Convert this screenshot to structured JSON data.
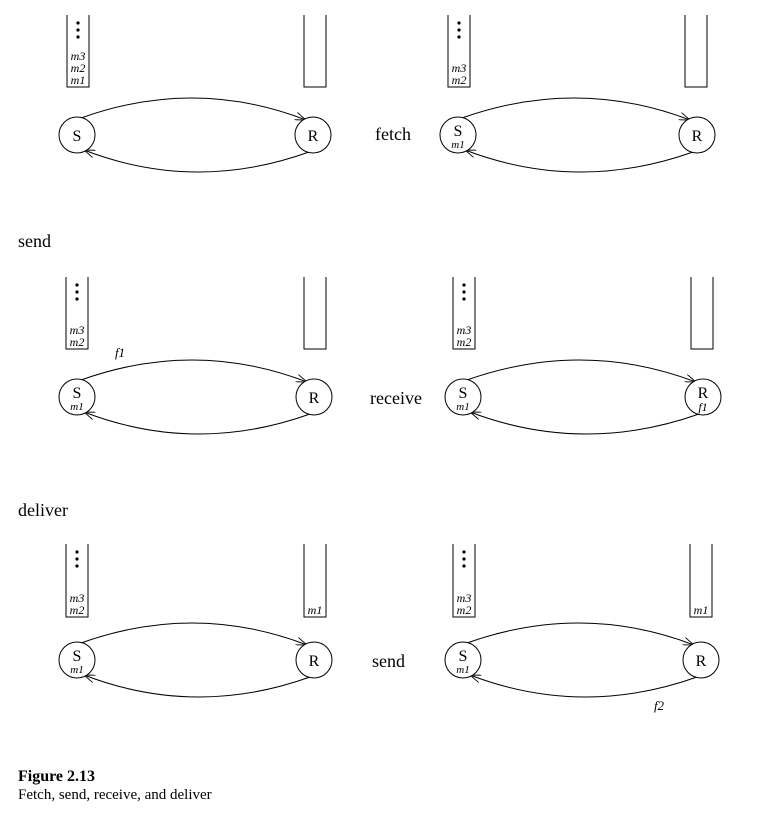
{
  "panels": [
    {
      "id": "p1",
      "sender_label": "S",
      "receiver_label": "R",
      "sender_sub": "",
      "receiver_sub": "",
      "queue_left": [
        "m3",
        "m2",
        "m1"
      ],
      "queue_right": [],
      "transit": ""
    },
    {
      "id": "p2",
      "sender_label": "S",
      "receiver_label": "R",
      "sender_sub": "m1",
      "receiver_sub": "",
      "queue_left": [
        "m3",
        "m2"
      ],
      "queue_right": [],
      "transit": ""
    },
    {
      "id": "p3",
      "sender_label": "S",
      "receiver_label": "R",
      "sender_sub": "m1",
      "receiver_sub": "",
      "queue_left": [
        "m3",
        "m2"
      ],
      "queue_right": [],
      "transit": "f1"
    },
    {
      "id": "p4",
      "sender_label": "S",
      "receiver_label": "R",
      "sender_sub": "m1",
      "receiver_sub": "f1",
      "queue_left": [
        "m3",
        "m2"
      ],
      "queue_right": [],
      "transit": ""
    },
    {
      "id": "p5",
      "sender_label": "S",
      "receiver_label": "R",
      "sender_sub": "m1",
      "receiver_sub": "",
      "queue_left": [
        "m3",
        "m2"
      ],
      "queue_right": [
        "m1"
      ],
      "transit": ""
    },
    {
      "id": "p6",
      "sender_label": "S",
      "receiver_label": "R",
      "sender_sub": "m1",
      "receiver_sub": "",
      "queue_left": [
        "m3",
        "m2"
      ],
      "queue_right": [
        "m1"
      ],
      "transit": "f2"
    }
  ],
  "transitions": {
    "fetch": "fetch",
    "send": "send",
    "receive": "receive",
    "deliver": "deliver",
    "send2": "send"
  },
  "caption": {
    "number": "Figure 2.13",
    "text": "Fetch, send, receive, and deliver"
  }
}
